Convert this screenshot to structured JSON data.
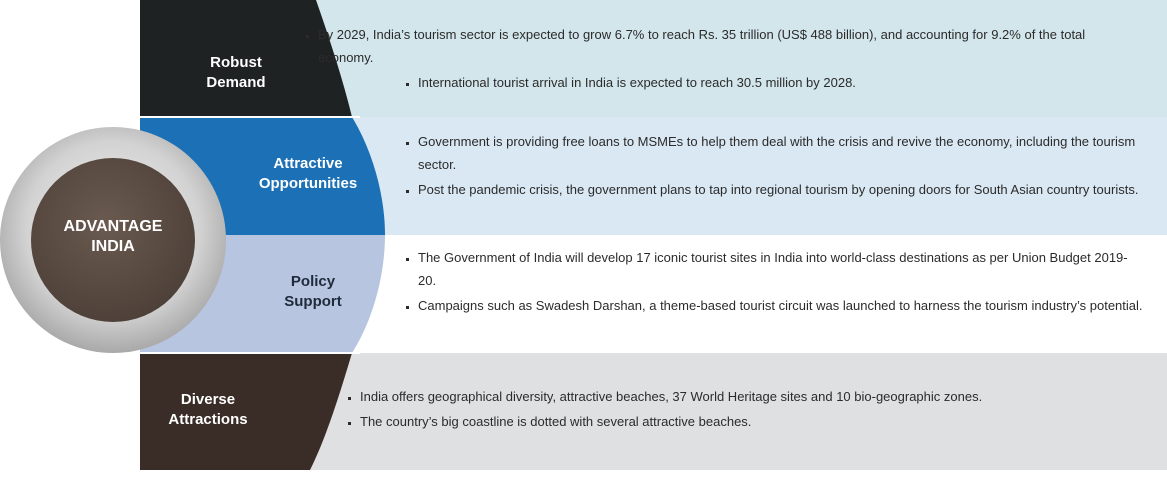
{
  "center": {
    "line1": "ADVANTAGE",
    "line2": "INDIA"
  },
  "segments": [
    {
      "label_line1": "Robust",
      "label_line2": "Demand",
      "color": "#1e2223",
      "bullets": [
        "By 2029, India’s tourism sector is expected to grow 6.7% to reach Rs. 35 trillion (US$ 488 billion), and accounting for 9.2% of the total economy.",
        "International tourist arrival in India is expected to reach 30.5 million by 2028."
      ]
    },
    {
      "label_line1": "Attractive",
      "label_line2": "Opportunities",
      "color": "#1c70b6",
      "bullets": [
        "Government is providing free loans to MSMEs to help them deal with the crisis and revive the economy, including the tourism sector.",
        "Post the pandemic crisis, the government plans to tap into regional tourism by opening doors for South Asian country tourists."
      ]
    },
    {
      "label_line1": "Policy",
      "label_line2": "Support",
      "color": "#b7c5e0",
      "bullets": [
        "The Government of India will develop 17 iconic tourist sites in India into world-class destinations as per Union Budget 2019-20.",
        "Campaigns such as Swadesh Darshan, a theme-based tourist circuit was launched to harness the tourism industry’s potential."
      ]
    },
    {
      "label_line1": "Diverse",
      "label_line2": "Attractions",
      "color": "#3a2d27",
      "bullets": [
        "India offers geographical diversity, attractive beaches, 37 World Heritage sites and 10 bio-geographic zones.",
        "The country’s big coastline is dotted with several attractive beaches."
      ]
    }
  ]
}
